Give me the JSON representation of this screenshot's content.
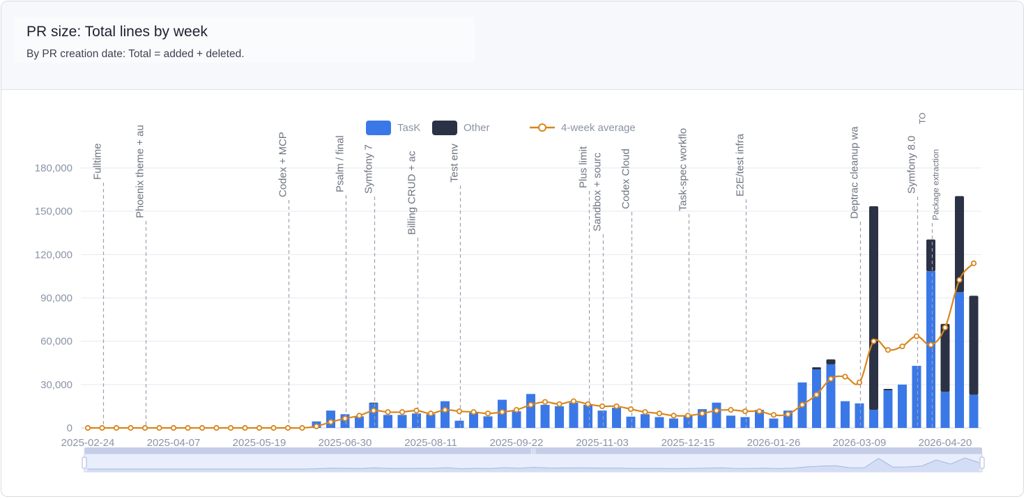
{
  "header": {
    "title": "PR size: Total lines by week",
    "subtitle": "By PR creation date: Total = added + deleted."
  },
  "colors": {
    "task": "#3b78e7",
    "other": "#2b3245",
    "average": "#d7861d",
    "grid": "#e6e9ef",
    "axis_text": "#8a93a6",
    "annotation_line": "#9aa1ad",
    "annotation_text": "#6d7380"
  },
  "chart_data": {
    "type": "bar",
    "stacked": true,
    "title": "PR size: Total lines by week",
    "subtitle": "By PR creation date: Total = added + deleted.",
    "ylim": [
      0,
      180000
    ],
    "y_ticks": [
      "0",
      "30,000",
      "60,000",
      "90,000",
      "120,000",
      "150,000",
      "180,000"
    ],
    "x_tick_labels": [
      "2025-02-24",
      "2025-04-07",
      "2025-05-19",
      "2025-06-30",
      "2025-08-11",
      "2025-09-22",
      "2025-11-03",
      "2025-12-15",
      "2026-01-26",
      "2026-03-09",
      "2026-04-20"
    ],
    "grid": true,
    "legend_position": "top",
    "legend": [
      "TasK",
      "Other",
      "4-week average"
    ],
    "categories": [
      "2025-02-24",
      "2025-03-03",
      "2025-03-10",
      "2025-03-17",
      "2025-03-24",
      "2025-03-31",
      "2025-04-07",
      "2025-04-14",
      "2025-04-21",
      "2025-04-28",
      "2025-05-05",
      "2025-05-12",
      "2025-05-19",
      "2025-05-26",
      "2025-06-02",
      "2025-06-09",
      "2025-06-16",
      "2025-06-23",
      "2025-06-30",
      "2025-07-07",
      "2025-07-14",
      "2025-07-21",
      "2025-07-28",
      "2025-08-04",
      "2025-08-11",
      "2025-08-18",
      "2025-08-25",
      "2025-09-01",
      "2025-09-08",
      "2025-09-15",
      "2025-09-22",
      "2025-09-29",
      "2025-10-06",
      "2025-10-13",
      "2025-10-20",
      "2025-10-27",
      "2025-11-03",
      "2025-11-10",
      "2025-11-17",
      "2025-11-24",
      "2025-12-01",
      "2025-12-08",
      "2025-12-15",
      "2025-12-22",
      "2025-12-29",
      "2026-01-05",
      "2026-01-12",
      "2026-01-19",
      "2026-01-26",
      "2026-02-02",
      "2026-02-09",
      "2026-02-16",
      "2026-02-23",
      "2026-03-02",
      "2026-03-09",
      "2026-03-16",
      "2026-03-23",
      "2026-03-30",
      "2026-04-06",
      "2026-04-13",
      "2026-04-20",
      "2026-04-27",
      "2026-05-04"
    ],
    "series": [
      {
        "name": "TasK",
        "values": [
          0,
          0,
          0,
          0,
          0,
          0,
          0,
          0,
          0,
          0,
          0,
          0,
          0,
          0,
          0,
          0,
          4500,
          12000,
          9500,
          8000,
          17000,
          9000,
          9000,
          10000,
          9500,
          18500,
          5000,
          10500,
          8000,
          19500,
          11500,
          23500,
          16000,
          15000,
          17500,
          16000,
          12000,
          14000,
          7800,
          9500,
          7500,
          6500,
          8500,
          13000,
          17500,
          8500,
          7500,
          12500,
          6500,
          12000,
          31500,
          40500,
          44000,
          18500,
          17000,
          12500,
          26000,
          30000,
          43000,
          108500,
          25000,
          94000,
          23000
        ]
      },
      {
        "name": "Other",
        "values": [
          0,
          0,
          0,
          0,
          0,
          0,
          0,
          0,
          0,
          0,
          0,
          0,
          0,
          0,
          0,
          0,
          0,
          0,
          0,
          0,
          500,
          0,
          0,
          0,
          0,
          0,
          0,
          0,
          0,
          0,
          0,
          0,
          0,
          0,
          0,
          0,
          0,
          0,
          0,
          0,
          0,
          0,
          0,
          0,
          0,
          0,
          0,
          0,
          0,
          0,
          0,
          1500,
          3500,
          0,
          0,
          141000,
          1000,
          0,
          0,
          22000,
          47000,
          66500,
          68500
        ]
      },
      {
        "name": "4-week average",
        "type": "line",
        "values": [
          0,
          0,
          0,
          0,
          0,
          0,
          0,
          0,
          0,
          0,
          0,
          0,
          0,
          0,
          0,
          0,
          1100,
          4100,
          6500,
          8500,
          12000,
          11000,
          11000,
          12000,
          10000,
          12500,
          11500,
          11000,
          10000,
          11000,
          12500,
          16000,
          18000,
          16500,
          18500,
          16500,
          15000,
          15000,
          13000,
          11000,
          10000,
          8500,
          8500,
          10000,
          12000,
          12500,
          11500,
          11500,
          9000,
          9500,
          16000,
          23000,
          34000,
          35500,
          31500,
          60000,
          54000,
          56500,
          63500,
          57500,
          69500,
          102500,
          114000
        ]
      }
    ],
    "annotations": [
      {
        "date": "2025-03-03",
        "label": "Fulltime"
      },
      {
        "date": "2025-03-24",
        "label": "Phoenix theme + au"
      },
      {
        "date": "2025-06-02",
        "label": "Codex + MCP"
      },
      {
        "date": "2025-06-30",
        "label": "Psalm / final"
      },
      {
        "date": "2025-07-14",
        "label": "Symfony 7"
      },
      {
        "date": "2025-08-04",
        "label": "Billing CRUD + ac"
      },
      {
        "date": "2025-08-25",
        "label": "Test env"
      },
      {
        "date": "2025-10-27",
        "label": "Plus limit"
      },
      {
        "date": "2025-11-03",
        "label": "Sandbox + sourc"
      },
      {
        "date": "2025-11-17",
        "label": "Codex Cloud"
      },
      {
        "date": "2025-12-15",
        "label": "Task-spec workflo"
      },
      {
        "date": "2026-01-12",
        "label": "E2E/test infra"
      },
      {
        "date": "2026-03-09",
        "label": "Deptrac cleanup wa"
      },
      {
        "date": "2026-04-06",
        "label": "Symfony 8.0"
      },
      {
        "date": "2026-04-13",
        "label": "TO"
      },
      {
        "date": "2026-04-13",
        "label": "Package extraction"
      }
    ]
  }
}
